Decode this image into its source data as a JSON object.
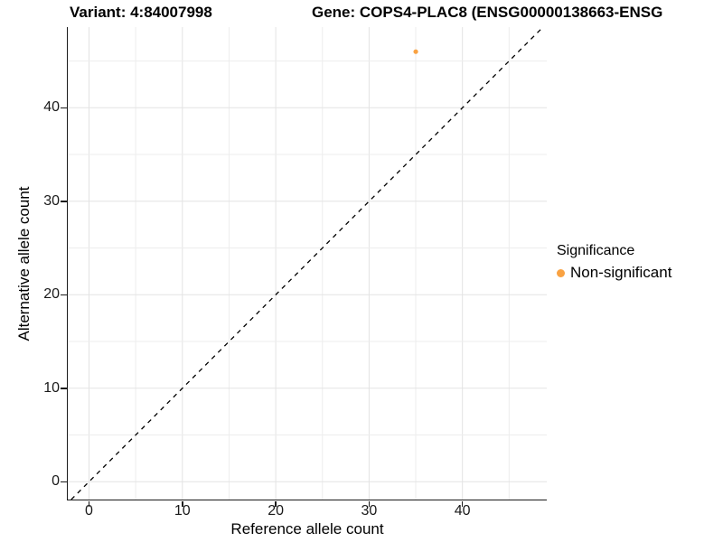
{
  "figure": {
    "variant_title": "Variant: 4:84007998",
    "gene_title": "Gene: COPS4-PLAC8 (ENSG00000138663-ENSG"
  },
  "chart_data": {
    "type": "scatter",
    "xlabel": "Reference allele count",
    "ylabel": "Alternative allele count",
    "x_ticks": [
      0,
      10,
      20,
      30,
      40
    ],
    "y_ticks": [
      0,
      10,
      20,
      30,
      40
    ],
    "x_gridlines": [
      0,
      5,
      10,
      15,
      20,
      25,
      30,
      35,
      40,
      45
    ],
    "y_gridlines": [
      0,
      5,
      10,
      15,
      20,
      25,
      30,
      35,
      40,
      45
    ],
    "xlim": [
      -2.3,
      49
    ],
    "ylim": [
      -1.9,
      48.6
    ],
    "grid": "on",
    "points": [
      {
        "x": 35,
        "y": 46,
        "series": "Non-significant"
      }
    ],
    "identity_line": {
      "equation": "y = x",
      "style": "dashed",
      "color": "#000000"
    },
    "legend": {
      "title": "Significance",
      "position": "right",
      "entries": [
        {
          "label": "Non-significant",
          "color": "#F9A242"
        }
      ]
    },
    "colors": {
      "point": "#F9A242",
      "major_grid": "#E3E3E3",
      "minor_grid": "#EDEDED",
      "axis": "#1a1a1a"
    }
  }
}
